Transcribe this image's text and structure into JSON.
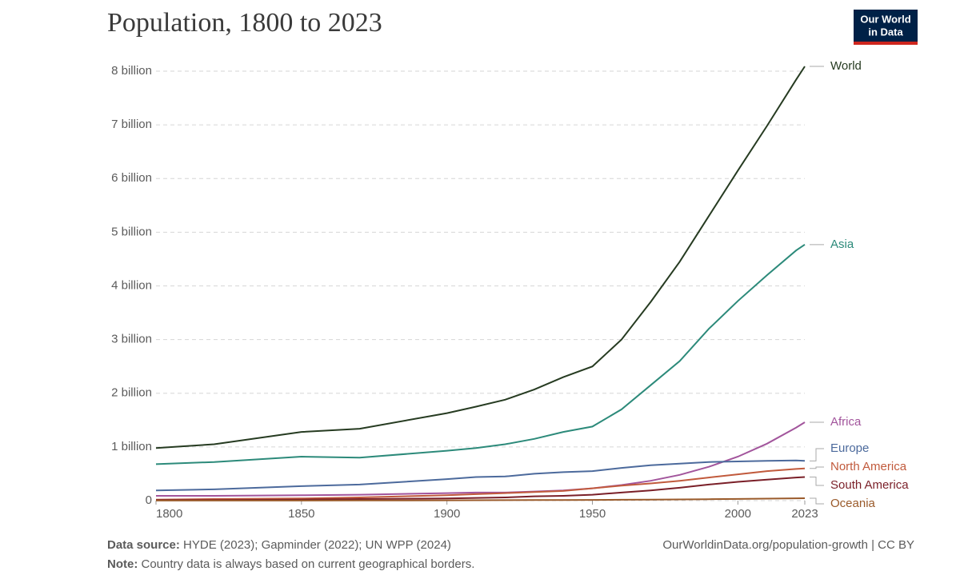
{
  "chart_data": {
    "type": "line",
    "title": "Population, 1800 to 2023",
    "x": [
      1800,
      1820,
      1850,
      1870,
      1900,
      1910,
      1920,
      1930,
      1940,
      1950,
      1960,
      1970,
      1980,
      1990,
      2000,
      2010,
      2020,
      2023
    ],
    "series": [
      {
        "name": "World",
        "color": "#263b21",
        "values": [
          0.98,
          1.05,
          1.28,
          1.34,
          1.63,
          1.75,
          1.88,
          2.07,
          2.3,
          2.5,
          3.0,
          3.7,
          4.45,
          5.3,
          6.15,
          6.98,
          7.84,
          8.09
        ]
      },
      {
        "name": "Asia",
        "color": "#2c8a7a",
        "values": [
          0.68,
          0.72,
          0.82,
          0.8,
          0.93,
          0.98,
          1.05,
          1.15,
          1.28,
          1.38,
          1.7,
          2.15,
          2.6,
          3.2,
          3.72,
          4.2,
          4.66,
          4.77
        ]
      },
      {
        "name": "Africa",
        "color": "#a2559c",
        "values": [
          0.09,
          0.09,
          0.1,
          0.11,
          0.14,
          0.15,
          0.15,
          0.17,
          0.19,
          0.23,
          0.29,
          0.37,
          0.48,
          0.63,
          0.82,
          1.06,
          1.36,
          1.46
        ]
      },
      {
        "name": "Europe",
        "color": "#4c6a9c",
        "values": [
          0.19,
          0.21,
          0.27,
          0.3,
          0.4,
          0.44,
          0.45,
          0.5,
          0.53,
          0.55,
          0.61,
          0.66,
          0.69,
          0.72,
          0.73,
          0.74,
          0.75,
          0.74
        ]
      },
      {
        "name": "North America",
        "color": "#c15a3c",
        "values": [
          0.02,
          0.03,
          0.04,
          0.06,
          0.1,
          0.12,
          0.14,
          0.16,
          0.18,
          0.23,
          0.28,
          0.32,
          0.37,
          0.43,
          0.49,
          0.55,
          0.59,
          0.6
        ]
      },
      {
        "name": "South America",
        "color": "#7a1f28",
        "values": [
          0.01,
          0.01,
          0.02,
          0.03,
          0.04,
          0.05,
          0.06,
          0.08,
          0.09,
          0.11,
          0.15,
          0.19,
          0.24,
          0.3,
          0.35,
          0.39,
          0.43,
          0.44
        ]
      },
      {
        "name": "Oceania",
        "color": "#9a5a2a",
        "values": [
          0.002,
          0.002,
          0.002,
          0.003,
          0.006,
          0.007,
          0.009,
          0.01,
          0.011,
          0.013,
          0.016,
          0.02,
          0.023,
          0.027,
          0.031,
          0.037,
          0.043,
          0.045
        ]
      }
    ],
    "xlim": [
      1800,
      2023
    ],
    "xticks": [
      1800,
      1850,
      1900,
      1950,
      2000,
      2023
    ],
    "ylim": [
      0,
      8
    ],
    "yticks": [
      0,
      {
        "value": 1,
        "label": "1 billion"
      },
      {
        "value": 2,
        "label": "2 billion"
      },
      {
        "value": 3,
        "label": "3 billion"
      },
      {
        "value": 4,
        "label": "4 billion"
      },
      {
        "value": 5,
        "label": "5 billion"
      },
      {
        "value": 6,
        "label": "6 billion"
      },
      {
        "value": 7,
        "label": "7 billion"
      },
      {
        "value": 8,
        "label": "8 billion"
      }
    ],
    "grid": true
  },
  "logo": {
    "line1": "Our World",
    "line2": "in Data"
  },
  "footer": {
    "source_label": "Data source:",
    "source": "HYDE (2023); Gapminder (2022); UN WPP (2024)",
    "url": "OurWorldinData.org/population-growth | CC BY",
    "note_label": "Note:",
    "note": "Country data is always based on current geographical borders."
  }
}
